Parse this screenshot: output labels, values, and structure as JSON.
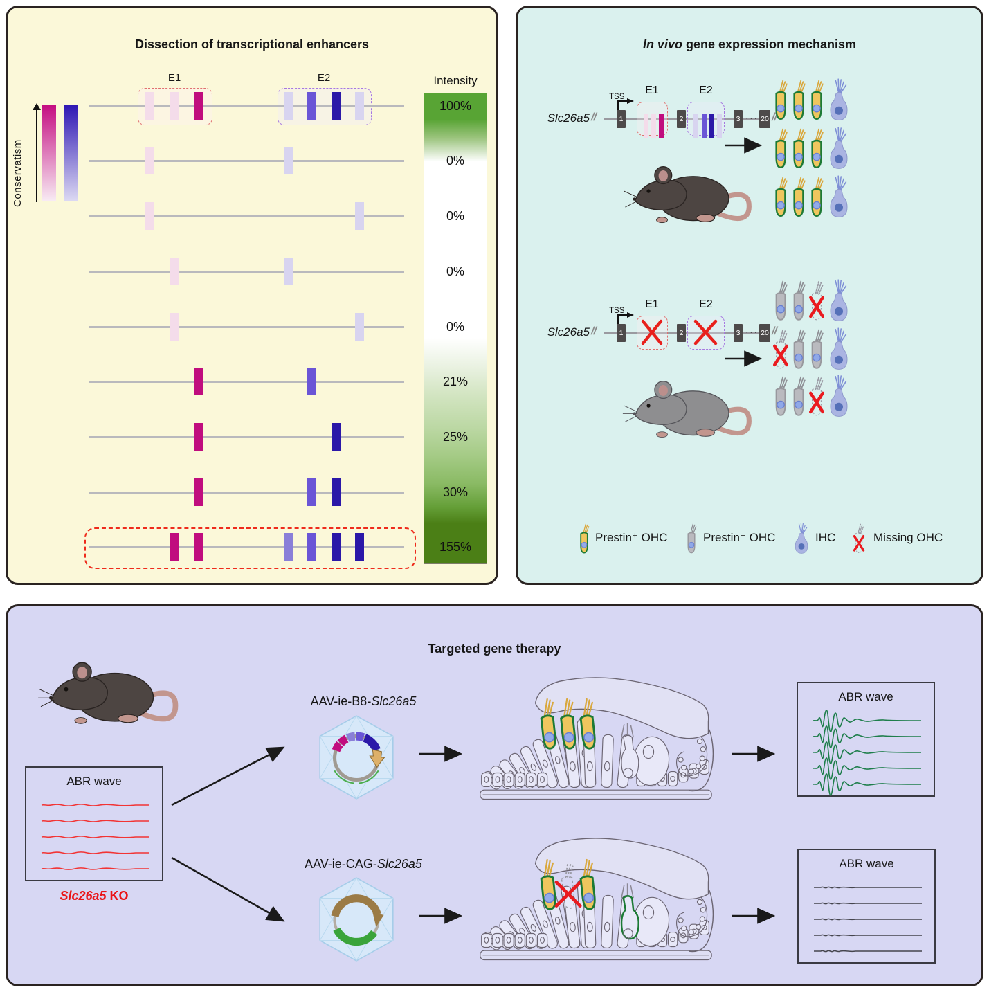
{
  "titles": {
    "enhancers": "Dissection of transcriptional enhancers",
    "invivo_italic": "In vivo",
    "invivo_rest": " gene expression mechanism",
    "therapy": "Targeted gene therapy"
  },
  "enhancers": {
    "conservatism_label": "Conservatism",
    "intensity_label": "Intensity",
    "e1_label": "E1",
    "e2_label": "E2",
    "palette": {
      "lightpink": "#f4dcea",
      "magenta": "#c00d7e",
      "lavender": "#d8d4f0",
      "lightpurple": "#8a7fd8",
      "purple": "#6a55d6",
      "darkblue": "#2b18a8"
    },
    "rows": [
      {
        "intensity": "100%",
        "e1": {
          "0": "lightpink",
          "1": "lightpink",
          "2": "magenta"
        },
        "e2": {
          "0": "lavender",
          "1": "purple",
          "2": "darkblue",
          "3": "lavender"
        },
        "e1_box": true,
        "e2_box": true
      },
      {
        "intensity": "0%",
        "e1": {
          "0": "lightpink"
        },
        "e2": {
          "0": "lavender"
        }
      },
      {
        "intensity": "0%",
        "e1": {
          "0": "lightpink"
        },
        "e2": {
          "3": "lavender"
        }
      },
      {
        "intensity": "0%",
        "e1": {
          "1": "lightpink"
        },
        "e2": {
          "0": "lavender"
        }
      },
      {
        "intensity": "0%",
        "e1": {
          "1": "lightpink"
        },
        "e2": {
          "3": "lavender"
        }
      },
      {
        "intensity": "21%",
        "e1": {
          "2": "magenta"
        },
        "e2": {
          "1": "purple"
        }
      },
      {
        "intensity": "25%",
        "e1": {
          "2": "magenta"
        },
        "e2": {
          "2": "darkblue"
        }
      },
      {
        "intensity": "30%",
        "e1": {
          "2": "magenta"
        },
        "e2": {
          "1": "purple",
          "2": "darkblue"
        }
      },
      {
        "intensity": "155%",
        "e1": {
          "1": "magenta",
          "2": "magenta"
        },
        "e2": {
          "0": "lightpurple",
          "1": "purple",
          "2": "darkblue",
          "3": "darkblue"
        },
        "row_box": true
      }
    ]
  },
  "gene": {
    "name": "Slc26a5",
    "tss": "TSS",
    "e1": "E1",
    "e2": "E2",
    "exons": [
      "1",
      "2",
      "3",
      "20"
    ],
    "dots": "···",
    "break_mark": "//"
  },
  "cells": {
    "normal_grid": [
      [
        "ohc+",
        "ohc+",
        "ohc+",
        "ihc"
      ],
      [
        "ohc+",
        "ohc+",
        "ohc+",
        "ihc"
      ],
      [
        "ohc+",
        "ohc+",
        "ohc+",
        "ihc"
      ]
    ],
    "ko_grid": [
      [
        "ohc-",
        "ohc-",
        "missing",
        "ihc"
      ],
      [
        "missing",
        "ohc-",
        "ohc-",
        "ihc"
      ],
      [
        "ohc-",
        "ohc-",
        "missing",
        "ihc"
      ]
    ]
  },
  "legend": [
    {
      "type": "ohc+",
      "label": "Prestin⁺ OHC"
    },
    {
      "type": "ohc-",
      "label": "Prestin⁻ OHC"
    },
    {
      "type": "ihc",
      "label": "IHC"
    },
    {
      "type": "missing",
      "label": "Missing OHC"
    }
  ],
  "therapy": {
    "ko_gene": "Slc26a5",
    "ko_suffix": " KO",
    "aav1_prefix": "AAV-ie-B8-",
    "aav1_gene": "Slc26a5",
    "aav2_prefix": "AAV-ie-CAG-",
    "aav2_gene": "Slc26a5",
    "abr_title": "ABR wave",
    "abr_boxes": [
      {
        "id": "ko",
        "trace": "flat_wavy",
        "color": "#f23434",
        "count": 5
      },
      {
        "id": "b8",
        "trace": "response",
        "color": "#1e7e4b",
        "count": 5
      },
      {
        "id": "cag",
        "trace": "flat_small",
        "color": "#45454d",
        "count": 5
      }
    ],
    "cochlea_normal": {
      "slots": [
        "ohc",
        "ohc",
        "ohc"
      ],
      "green_ihc": false
    },
    "cochlea_ko": {
      "slots": [
        "ohc",
        "missing",
        "ohc"
      ],
      "green_ihc": true
    }
  }
}
